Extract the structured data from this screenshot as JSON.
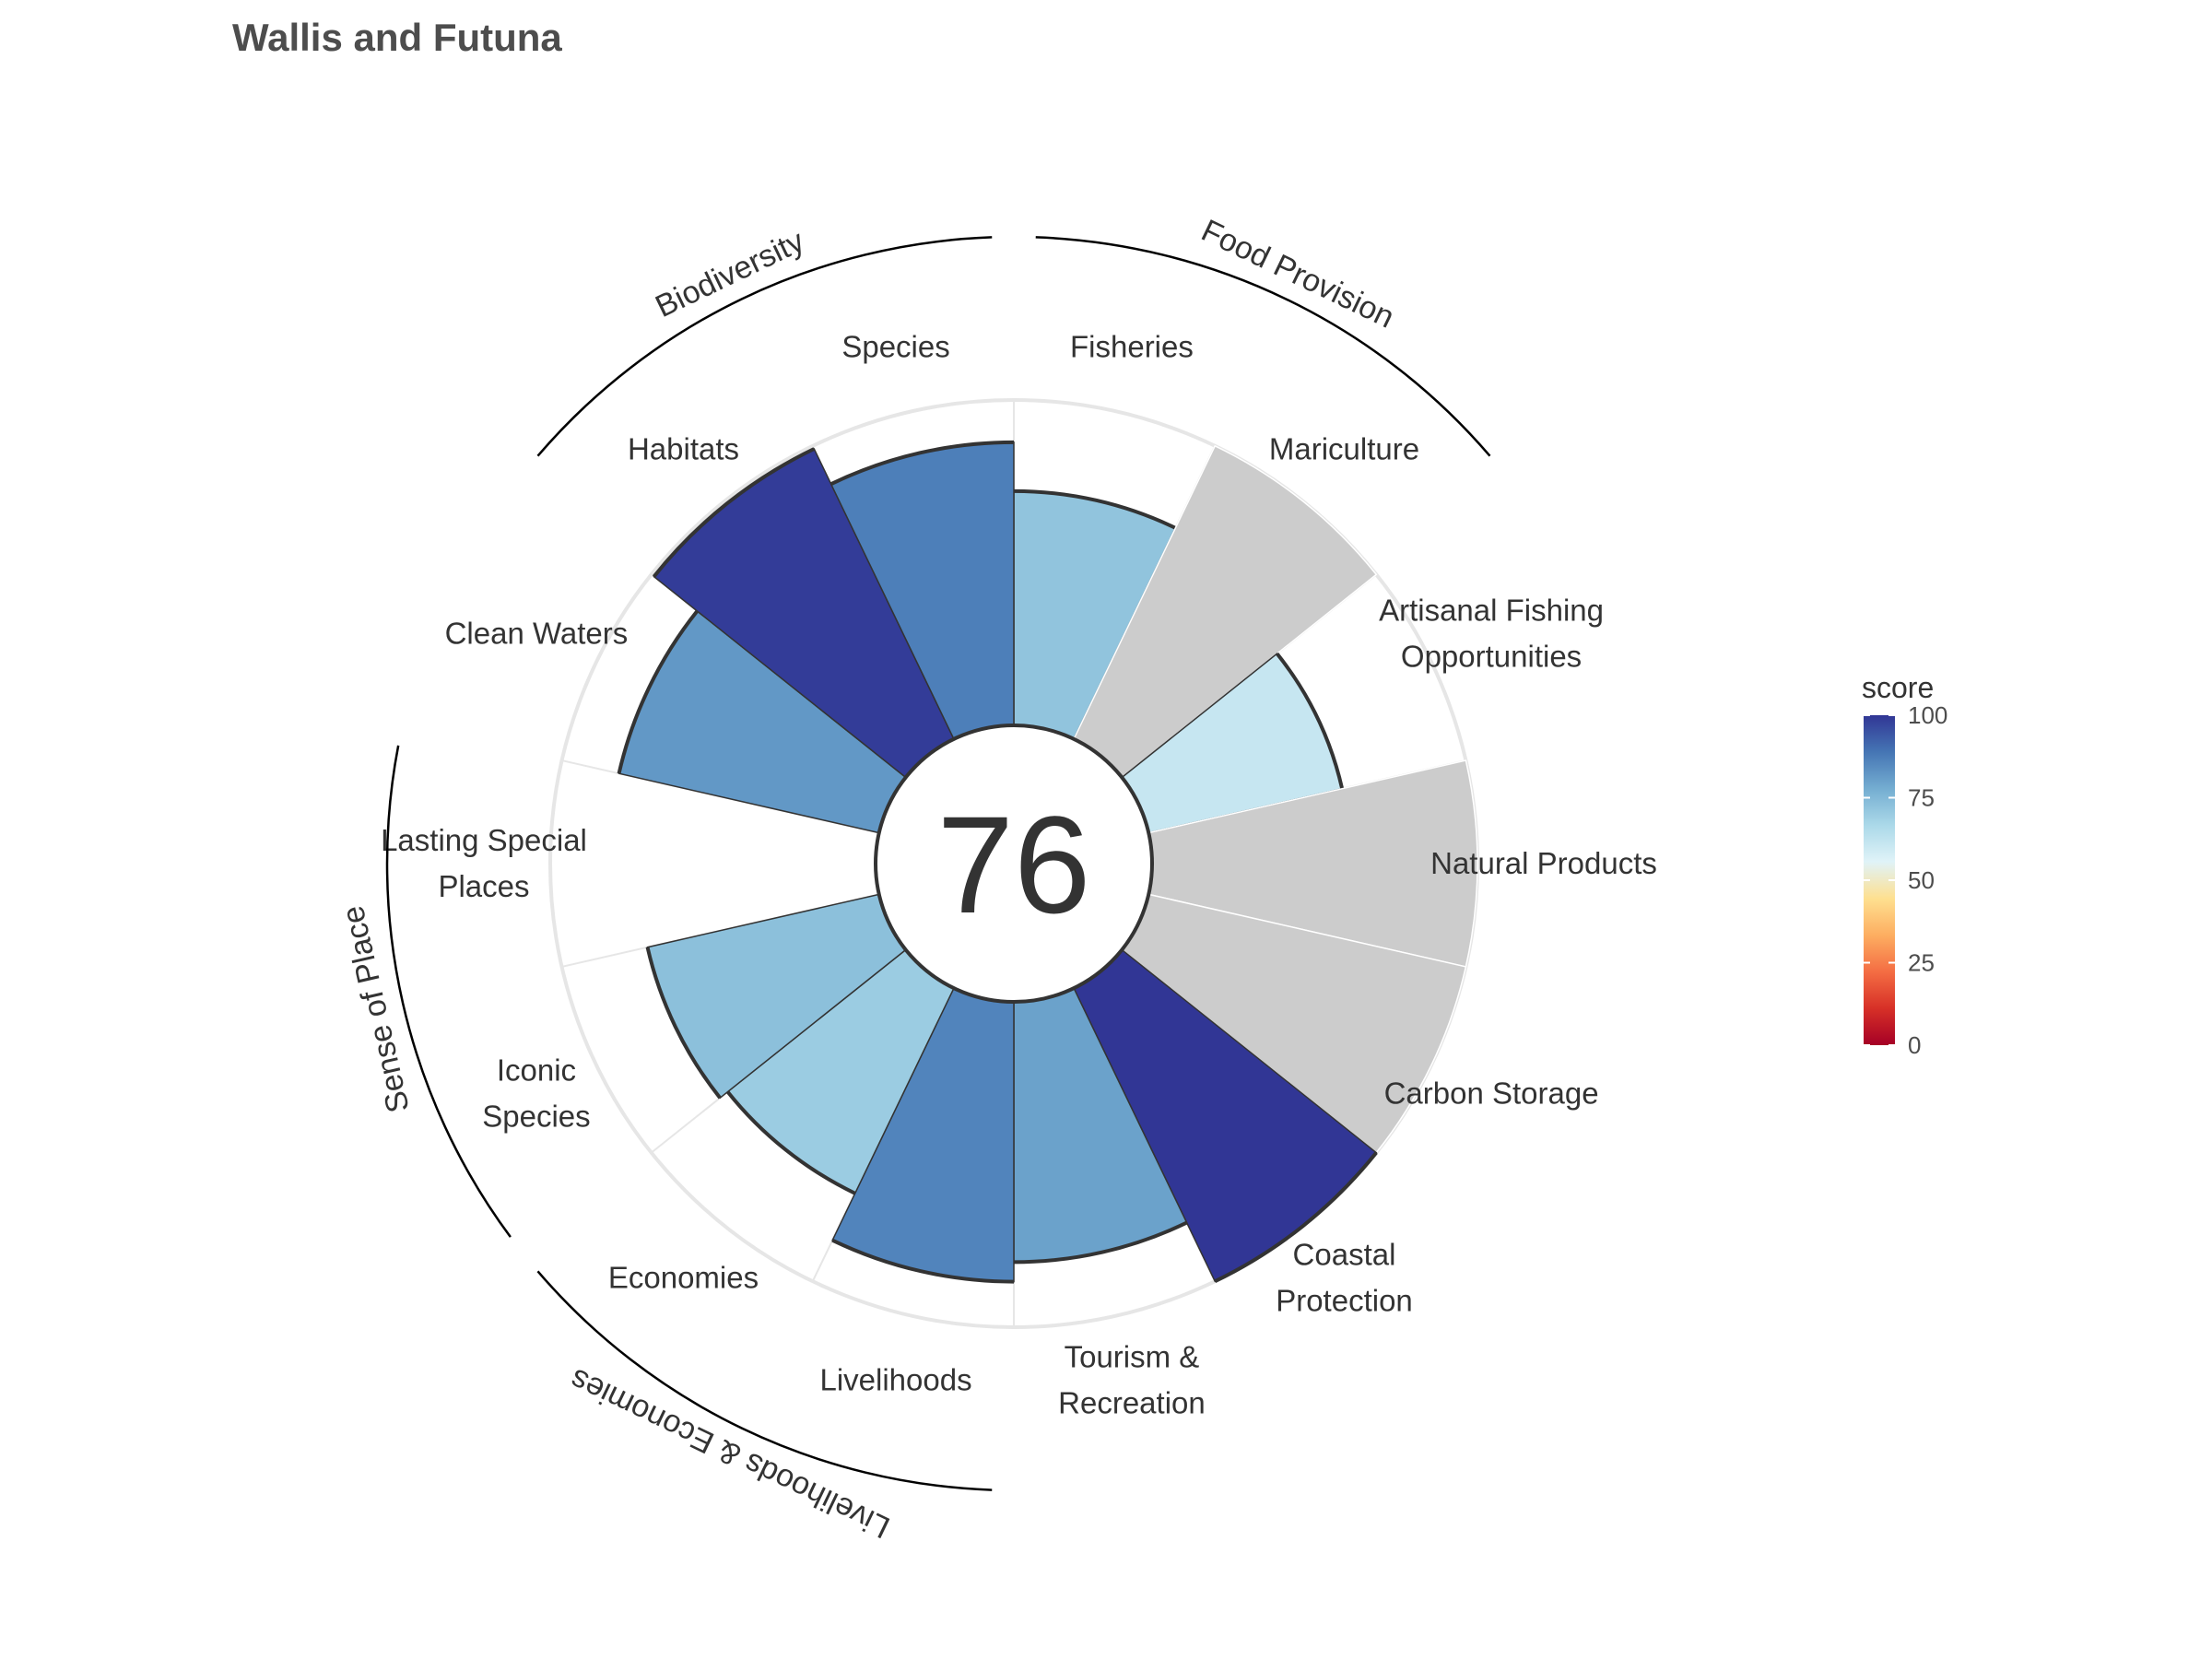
{
  "chart_data": {
    "type": "bar",
    "subtype": "polar-flower",
    "title": "Wallis and Futuna",
    "center_label": "76",
    "rlim": [
      0,
      100
    ],
    "goals": [
      {
        "label": [
          "Fisheries"
        ],
        "score": 72
      },
      {
        "label": [
          "Mariculture"
        ],
        "score": null
      },
      {
        "label": [
          "Artisanal Fishing",
          "Opportunities"
        ],
        "score": 61
      },
      {
        "label": [
          "Natural Products"
        ],
        "score": null
      },
      {
        "label": [
          "Carbon Storage"
        ],
        "score": null
      },
      {
        "label": [
          "Coastal",
          "Protection"
        ],
        "score": 100
      },
      {
        "label": [
          "Tourism &",
          "Recreation"
        ],
        "score": 80
      },
      {
        "label": [
          "Livelihoods"
        ],
        "score": 86
      },
      {
        "label": [
          "Economies"
        ],
        "score": 70
      },
      {
        "label": [
          "Iconic",
          "Species"
        ],
        "score": 73
      },
      {
        "label": [
          "Lasting Special",
          "Places"
        ],
        "score": 0
      },
      {
        "label": [
          "Clean Waters"
        ],
        "score": 82
      },
      {
        "label": [
          "Habitats"
        ],
        "score": 99
      },
      {
        "label": [
          "Species"
        ],
        "score": 87
      }
    ],
    "groups": [
      {
        "label": "Food Provision",
        "goal_indices": [
          0,
          1
        ]
      },
      {
        "label": "Biodiversity",
        "goal_indices": [
          12,
          13
        ]
      },
      {
        "label": "Sense of Place",
        "goal_indices": [
          9,
          10
        ]
      },
      {
        "label": "Livelihoods & Economies",
        "goal_indices": [
          7,
          8
        ]
      }
    ],
    "legend": {
      "title": "score",
      "ticks": [
        0,
        25,
        50,
        75,
        100
      ],
      "placement": "right"
    },
    "colorscale": [
      "#a50026",
      "#d73027",
      "#f46d43",
      "#fdae61",
      "#fee090",
      "#e0f3f8",
      "#abd9e9",
      "#74add1",
      "#4575b4",
      "#313695"
    ],
    "na_color": "#cccccc"
  }
}
